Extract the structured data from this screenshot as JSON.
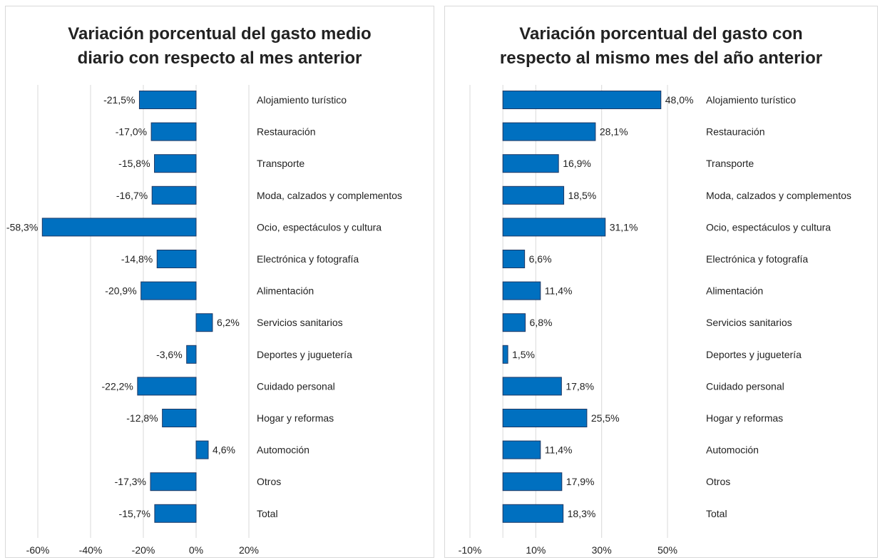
{
  "chart_data": [
    {
      "type": "bar",
      "orientation": "horizontal",
      "title_lines": [
        "Variación porcentual del gasto medio",
        "diario con respecto al mes anterior"
      ],
      "categories": [
        "Alojamiento turístico",
        "Restauración",
        "Transporte",
        "Moda, calzados y complementos",
        "Ocio, espectáculos y cultura",
        "Electrónica y fotografía",
        "Alimentación",
        "Servicios sanitarios",
        "Deportes y juguetería",
        "Cuidado personal",
        "Hogar y reformas",
        "Automoción",
        "Otros",
        "Total"
      ],
      "values": [
        -21.5,
        -17.0,
        -15.8,
        -16.7,
        -58.3,
        -14.8,
        -20.9,
        6.2,
        -3.6,
        -22.2,
        -12.8,
        4.6,
        -17.3,
        -15.7
      ],
      "value_labels": [
        "-21,5%",
        "-17,0%",
        "-15,8%",
        "-16,7%",
        "-58,3%",
        "-14,8%",
        "-20,9%",
        "6,2%",
        "-3,6%",
        "-22,2%",
        "-12,8%",
        "4,6%",
        "-17,3%",
        "-15,7%"
      ],
      "xlim": [
        -60,
        20
      ],
      "xticks": [
        -60,
        -40,
        -20,
        0,
        20
      ],
      "xtick_labels": [
        "-60%",
        "-40%",
        "-20%",
        "0%",
        "20%"
      ],
      "grid": true,
      "bar_color": "#0070c0",
      "bar_edge_color": "#1f3864"
    },
    {
      "type": "bar",
      "orientation": "horizontal",
      "title_lines": [
        "Variación porcentual del gasto con",
        "respecto al mismo mes del año anterior"
      ],
      "categories": [
        "Alojamiento turístico",
        "Restauración",
        "Transporte",
        "Moda, calzados y complementos",
        "Ocio, espectáculos y cultura",
        "Electrónica y fotografía",
        "Alimentación",
        "Servicios sanitarios",
        "Deportes y juguetería",
        "Cuidado personal",
        "Hogar y reformas",
        "Automoción",
        "Otros",
        "Total"
      ],
      "values": [
        48.0,
        28.1,
        16.9,
        18.5,
        31.1,
        6.6,
        11.4,
        6.8,
        1.5,
        17.8,
        25.5,
        11.4,
        17.9,
        18.3
      ],
      "value_labels": [
        "48,0%",
        "28,1%",
        "16,9%",
        "18,5%",
        "31,1%",
        "6,6%",
        "11,4%",
        "6,8%",
        "1,5%",
        "17,8%",
        "25,5%",
        "11,4%",
        "17,9%",
        "18,3%"
      ],
      "xlim": [
        -10,
        50
      ],
      "xticks": [
        -10,
        10,
        30,
        50
      ],
      "xtick_labels": [
        "-10%",
        "10%",
        "30%",
        "50%"
      ],
      "grid": true,
      "bar_color": "#0070c0",
      "bar_edge_color": "#1f3864"
    }
  ]
}
